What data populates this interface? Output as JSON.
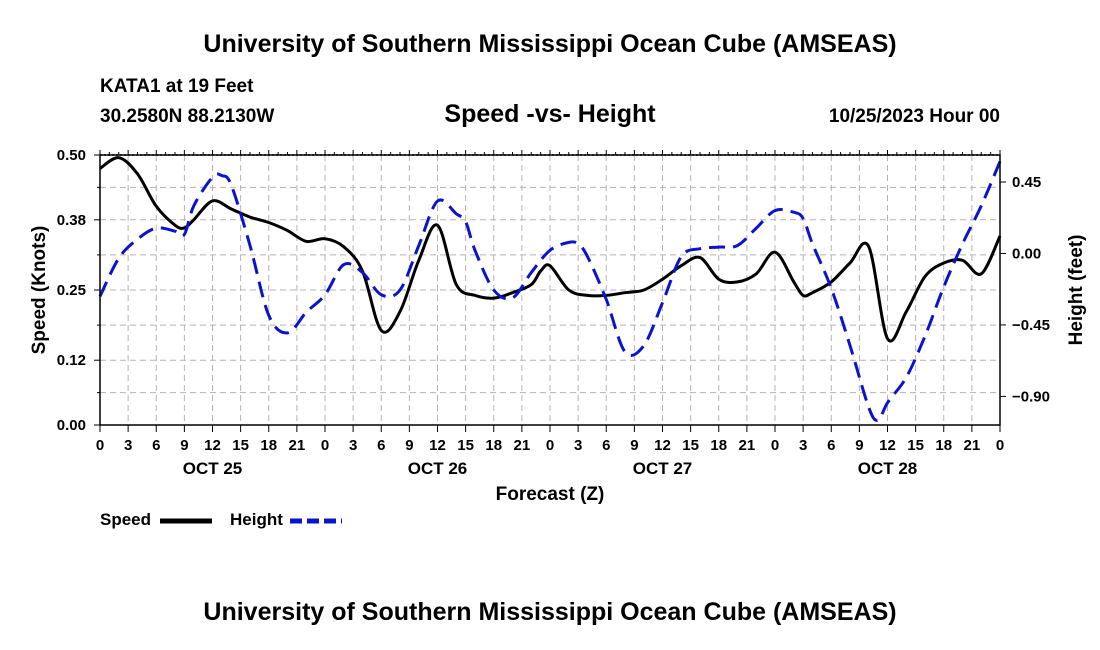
{
  "header": {
    "title": "University of Southern Mississippi Ocean Cube (AMSEAS)",
    "station": "KATA1 at 19 Feet",
    "coords": "30.2580N  88.2130W",
    "subtitle": "Speed -vs- Height",
    "datetime": "10/25/2023 Hour 00"
  },
  "footer": {
    "title": "University of Southern Mississippi Ocean Cube (AMSEAS)"
  },
  "colors": {
    "speed": "#000000",
    "height": "#0a14cc",
    "grid": "#b4b4b4"
  },
  "chart_data": {
    "type": "line",
    "title": "Speed -vs- Height",
    "xlabel": "Forecast (Z)",
    "ylabel_left": "Speed (Knots)",
    "ylabel_right": "Height (feet)",
    "x_ticks": [
      "0",
      "3",
      "6",
      "9",
      "12",
      "15",
      "18",
      "21",
      "0",
      "3",
      "6",
      "9",
      "12",
      "15",
      "18",
      "21",
      "0",
      "3",
      "6",
      "9",
      "12",
      "15",
      "18",
      "21",
      "0",
      "3",
      "6",
      "9",
      "12",
      "15",
      "18",
      "21",
      "0"
    ],
    "day_labels": [
      {
        "hour": 12,
        "label": "OCT 25"
      },
      {
        "hour": 36,
        "label": "OCT 26"
      },
      {
        "hour": 60,
        "label": "OCT 27"
      },
      {
        "hour": 84,
        "label": "OCT 28"
      }
    ],
    "xlim": [
      0,
      96
    ],
    "ylim_left": [
      0,
      0.5
    ],
    "left_ticks": [
      0.0,
      0.12,
      0.25,
      0.38,
      0.5
    ],
    "left_tick_labels": [
      "0.00",
      "0.12",
      "0.25",
      "0.38",
      "0.50"
    ],
    "ylim_right": [
      -1.08,
      0.62
    ],
    "right_ticks": [
      0.45,
      0.0,
      -0.45,
      -0.9
    ],
    "right_tick_labels": [
      "0.45",
      "0.00",
      "−0.45",
      "−0.90"
    ],
    "grid": true,
    "legend": [
      {
        "name": "Speed",
        "style": "solid"
      },
      {
        "name": "Height",
        "style": "dashed"
      }
    ],
    "series": [
      {
        "name": "Speed",
        "axis": "left",
        "x": [
          0,
          2,
          4,
          6,
          8,
          9,
          10,
          12,
          14,
          16,
          18,
          20,
          22,
          24,
          26,
          28,
          30,
          32,
          34,
          36,
          38,
          40,
          42,
          44,
          46,
          47,
          48,
          50,
          52,
          54,
          56,
          58,
          60,
          62,
          64,
          66,
          68,
          70,
          72,
          74,
          75,
          76,
          78,
          80,
          82,
          84,
          86,
          88,
          90,
          92,
          94,
          96
        ],
        "y": [
          0.475,
          0.495,
          0.465,
          0.405,
          0.37,
          0.365,
          0.38,
          0.415,
          0.4,
          0.385,
          0.375,
          0.36,
          0.34,
          0.345,
          0.33,
          0.285,
          0.175,
          0.21,
          0.305,
          0.37,
          0.26,
          0.24,
          0.235,
          0.245,
          0.26,
          0.285,
          0.295,
          0.25,
          0.24,
          0.24,
          0.245,
          0.25,
          0.27,
          0.295,
          0.31,
          0.27,
          0.265,
          0.28,
          0.32,
          0.265,
          0.24,
          0.245,
          0.265,
          0.3,
          0.33,
          0.16,
          0.21,
          0.275,
          0.3,
          0.305,
          0.28,
          0.35
        ]
      },
      {
        "name": "Height",
        "axis": "right",
        "x": [
          0,
          2,
          4,
          6,
          8,
          9,
          10,
          12,
          13,
          14,
          16,
          18,
          20,
          22,
          24,
          26,
          28,
          30,
          32,
          34,
          36,
          38,
          39,
          40,
          42,
          44,
          46,
          48,
          50,
          51,
          52,
          54,
          56,
          58,
          60,
          62,
          64,
          66,
          68,
          70,
          72,
          74,
          75,
          76,
          78,
          80,
          82,
          83,
          84,
          86,
          88,
          90,
          92,
          94,
          96
        ],
        "y": [
          -0.27,
          -0.03,
          0.09,
          0.16,
          0.14,
          0.12,
          0.3,
          0.48,
          0.49,
          0.43,
          0.05,
          -0.39,
          -0.5,
          -0.37,
          -0.26,
          -0.07,
          -0.12,
          -0.26,
          -0.23,
          0.05,
          0.33,
          0.25,
          0.2,
          0.02,
          -0.23,
          -0.28,
          -0.12,
          0.02,
          0.07,
          0.06,
          -0.02,
          -0.29,
          -0.62,
          -0.58,
          -0.31,
          -0.02,
          0.03,
          0.04,
          0.05,
          0.16,
          0.27,
          0.26,
          0.22,
          0.06,
          -0.22,
          -0.58,
          -0.97,
          -1.05,
          -0.94,
          -0.78,
          -0.52,
          -0.21,
          0.06,
          0.3,
          0.58
        ]
      }
    ]
  }
}
